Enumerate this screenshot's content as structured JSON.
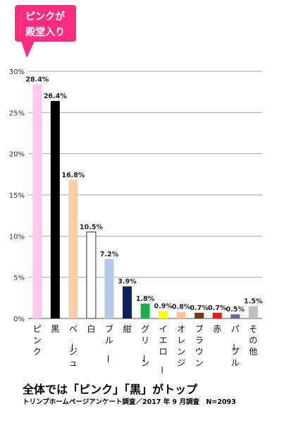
{
  "callout": {
    "line1": "ピンクが",
    "line2": "殿堂入り",
    "color": "#ff2d82"
  },
  "chart_data": {
    "type": "bar",
    "categories": [
      "ピンク",
      "黒",
      "ベージュ",
      "白",
      "ブルー",
      "紺",
      "グリーン",
      "イエロー",
      "オレンジ",
      "ブラウン",
      "赤",
      "パープル",
      "その他"
    ],
    "values": [
      28.4,
      26.4,
      16.8,
      10.5,
      7.2,
      3.9,
      1.8,
      0.9,
      0.8,
      0.7,
      0.7,
      0.5,
      1.5
    ],
    "value_labels": [
      "28.4%",
      "26.4%",
      "16.8%",
      "10.5%",
      "7.2%",
      "3.9%",
      "1.8%",
      "0.9%",
      "0.8%",
      "0.7%",
      "0.7%",
      "0.5%",
      "1.5%"
    ],
    "colors": [
      "#ffc8ec",
      "#000000",
      "#fbcda8",
      "#ffffff",
      "#b3c9e3",
      "#0e1f5e",
      "#1ab04c",
      "#ffff00",
      "#f8c29a",
      "#6e3f12",
      "#e8191f",
      "#7b5ea8",
      "#bfbfbf"
    ],
    "yticks": [
      "0%",
      "5%",
      "10%",
      "15%",
      "20%",
      "25%",
      "30%"
    ],
    "ylim": [
      0,
      30
    ],
    "grid": true
  },
  "caption": "全体では「ピンク」「黒」がトップ",
  "source": "トリンプホームページアンケート調査／2017 年 9 月調査　N=2093"
}
